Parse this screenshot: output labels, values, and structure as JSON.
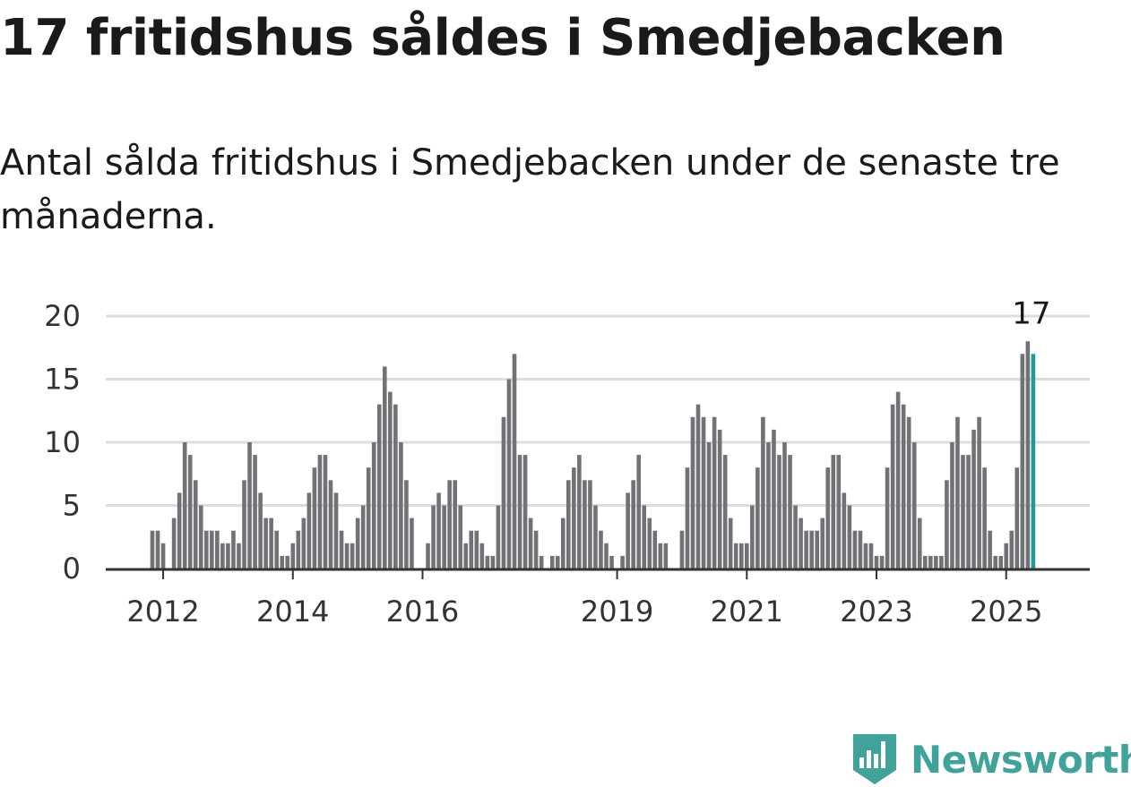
{
  "title": "17 fritidshus såldes i Smedjebacken",
  "subtitle": "Antal sålda fritidshus i Smedjebacken under de senaste tre månaderna.",
  "brand": {
    "name": "Newsworthy",
    "color": "#3fa39b",
    "icon": "newsworthy-logo-icon"
  },
  "colors": {
    "bar": "#727176",
    "highlight": "#1a9e96",
    "grid": "#dddddd",
    "axis": "#333333"
  },
  "chart_data": {
    "type": "bar",
    "start": "2011-11",
    "values": [
      3,
      3,
      2,
      0,
      4,
      6,
      10,
      9,
      7,
      5,
      3,
      3,
      3,
      2,
      2,
      3,
      2,
      7,
      10,
      9,
      6,
      4,
      4,
      3,
      1,
      1,
      2,
      3,
      4,
      6,
      8,
      9,
      9,
      7,
      6,
      3,
      2,
      2,
      4,
      5,
      8,
      10,
      13,
      16,
      14,
      13,
      10,
      7,
      4,
      0,
      0,
      2,
      5,
      6,
      5,
      7,
      7,
      5,
      2,
      3,
      3,
      2,
      1,
      1,
      5,
      12,
      15,
      17,
      9,
      9,
      4,
      3,
      1,
      0,
      1,
      1,
      4,
      7,
      8,
      9,
      7,
      7,
      5,
      3,
      2,
      1,
      0,
      1,
      6,
      7,
      9,
      5,
      4,
      3,
      2,
      2,
      0,
      0,
      3,
      8,
      12,
      13,
      12,
      10,
      12,
      11,
      9,
      4,
      2,
      2,
      2,
      5,
      8,
      12,
      10,
      11,
      9,
      10,
      9,
      5,
      4,
      3,
      3,
      3,
      4,
      8,
      9,
      9,
      6,
      5,
      3,
      3,
      2,
      2,
      1,
      1,
      8,
      13,
      14,
      13,
      12,
      10,
      4,
      1,
      1,
      1,
      1,
      7,
      10,
      12,
      9,
      9,
      11,
      12,
      8,
      3,
      1,
      1,
      2,
      3,
      8,
      17,
      18,
      17
    ],
    "highlight_last": true,
    "annotation": "17",
    "x_ticks": [
      "2012",
      "2014",
      "2016",
      "2019",
      "2021",
      "2023",
      "2025"
    ],
    "y_ticks": [
      "0",
      "5",
      "10",
      "15",
      "20"
    ],
    "ylim": [
      0,
      20
    ],
    "grid": true
  }
}
